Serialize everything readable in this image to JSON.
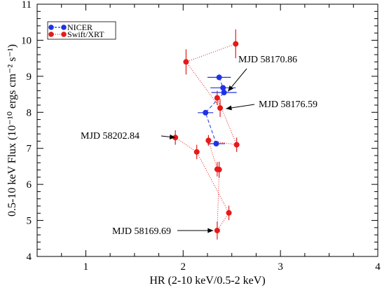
{
  "chart_data": {
    "type": "scatter",
    "xlabel": "HR (2-10 keV/0.5-2 keV)",
    "ylabel": "0.5-10 keV Flux (10⁻¹⁰ ergs cm⁻² s⁻¹)",
    "xlim": [
      0.5,
      4
    ],
    "ylim": [
      4,
      11
    ],
    "xticks": [
      "1",
      "2",
      "3",
      "4"
    ],
    "yticks": [
      "4",
      "5",
      "6",
      "7",
      "8",
      "9",
      "10",
      "11"
    ],
    "grid": false,
    "legend_position": "top-left",
    "series": [
      {
        "name": "NICER",
        "color": "#1f33e6",
        "line": "dashed",
        "points": [
          {
            "x": 2.37,
            "y": 8.97,
            "xerr": 0.12,
            "yerr": 0.0
          },
          {
            "x": 2.41,
            "y": 8.68,
            "xerr": 0.13,
            "yerr": 0.0
          },
          {
            "x": 2.42,
            "y": 8.55,
            "xerr": 0.13,
            "yerr": 0.0
          },
          {
            "x": 2.23,
            "y": 7.99,
            "xerr": 0.08,
            "yerr": 0.0
          },
          {
            "x": 2.34,
            "y": 7.13,
            "xerr": 0.09,
            "yerr": 0.0
          }
        ]
      },
      {
        "name": "Swift/XRT",
        "color": "#e61a1a",
        "line": "dotted",
        "points": [
          {
            "x": 2.35,
            "y": 4.72,
            "xerr": 0.0,
            "yerr": 0.25
          },
          {
            "x": 2.47,
            "y": 5.21,
            "xerr": 0.0,
            "yerr": 0.2
          },
          {
            "x": 2.37,
            "y": 6.41,
            "xerr": 0.0,
            "yerr": 0.22
          },
          {
            "x": 2.35,
            "y": 6.42,
            "xerr": 0.0,
            "yerr": 0.2
          },
          {
            "x": 2.14,
            "y": 6.9,
            "xerr": 0.0,
            "yerr": 0.2
          },
          {
            "x": 2.26,
            "y": 7.22,
            "xerr": 0.0,
            "yerr": 0.15
          },
          {
            "x": 2.55,
            "y": 7.1,
            "xerr": 0.0,
            "yerr": 0.2
          },
          {
            "x": 1.92,
            "y": 7.3,
            "xerr": 0.0,
            "yerr": 0.2
          },
          {
            "x": 2.38,
            "y": 8.12,
            "xerr": 0.0,
            "yerr": 0.25
          },
          {
            "x": 2.35,
            "y": 8.4,
            "xerr": 0.0,
            "yerr": 0.2
          },
          {
            "x": 2.03,
            "y": 9.4,
            "xerr": 0.0,
            "yerr": 0.35
          },
          {
            "x": 2.54,
            "y": 9.9,
            "xerr": 0.0,
            "yerr": 0.4
          }
        ],
        "path_order": [
          7,
          4,
          1,
          0,
          2,
          3,
          5,
          6,
          9,
          8,
          10,
          11
        ]
      }
    ],
    "annotations": [
      {
        "text": "MJD 58170.86",
        "target": {
          "x": 2.46,
          "y": 8.58
        }
      },
      {
        "text": "MJD 58176.59",
        "target": {
          "x": 2.44,
          "y": 8.1
        }
      },
      {
        "text": "MJD 58202.84",
        "target": {
          "x": 1.92,
          "y": 7.3
        }
      },
      {
        "text": "MJD  58169.69",
        "target": {
          "x": 2.31,
          "y": 4.72
        }
      }
    ]
  }
}
